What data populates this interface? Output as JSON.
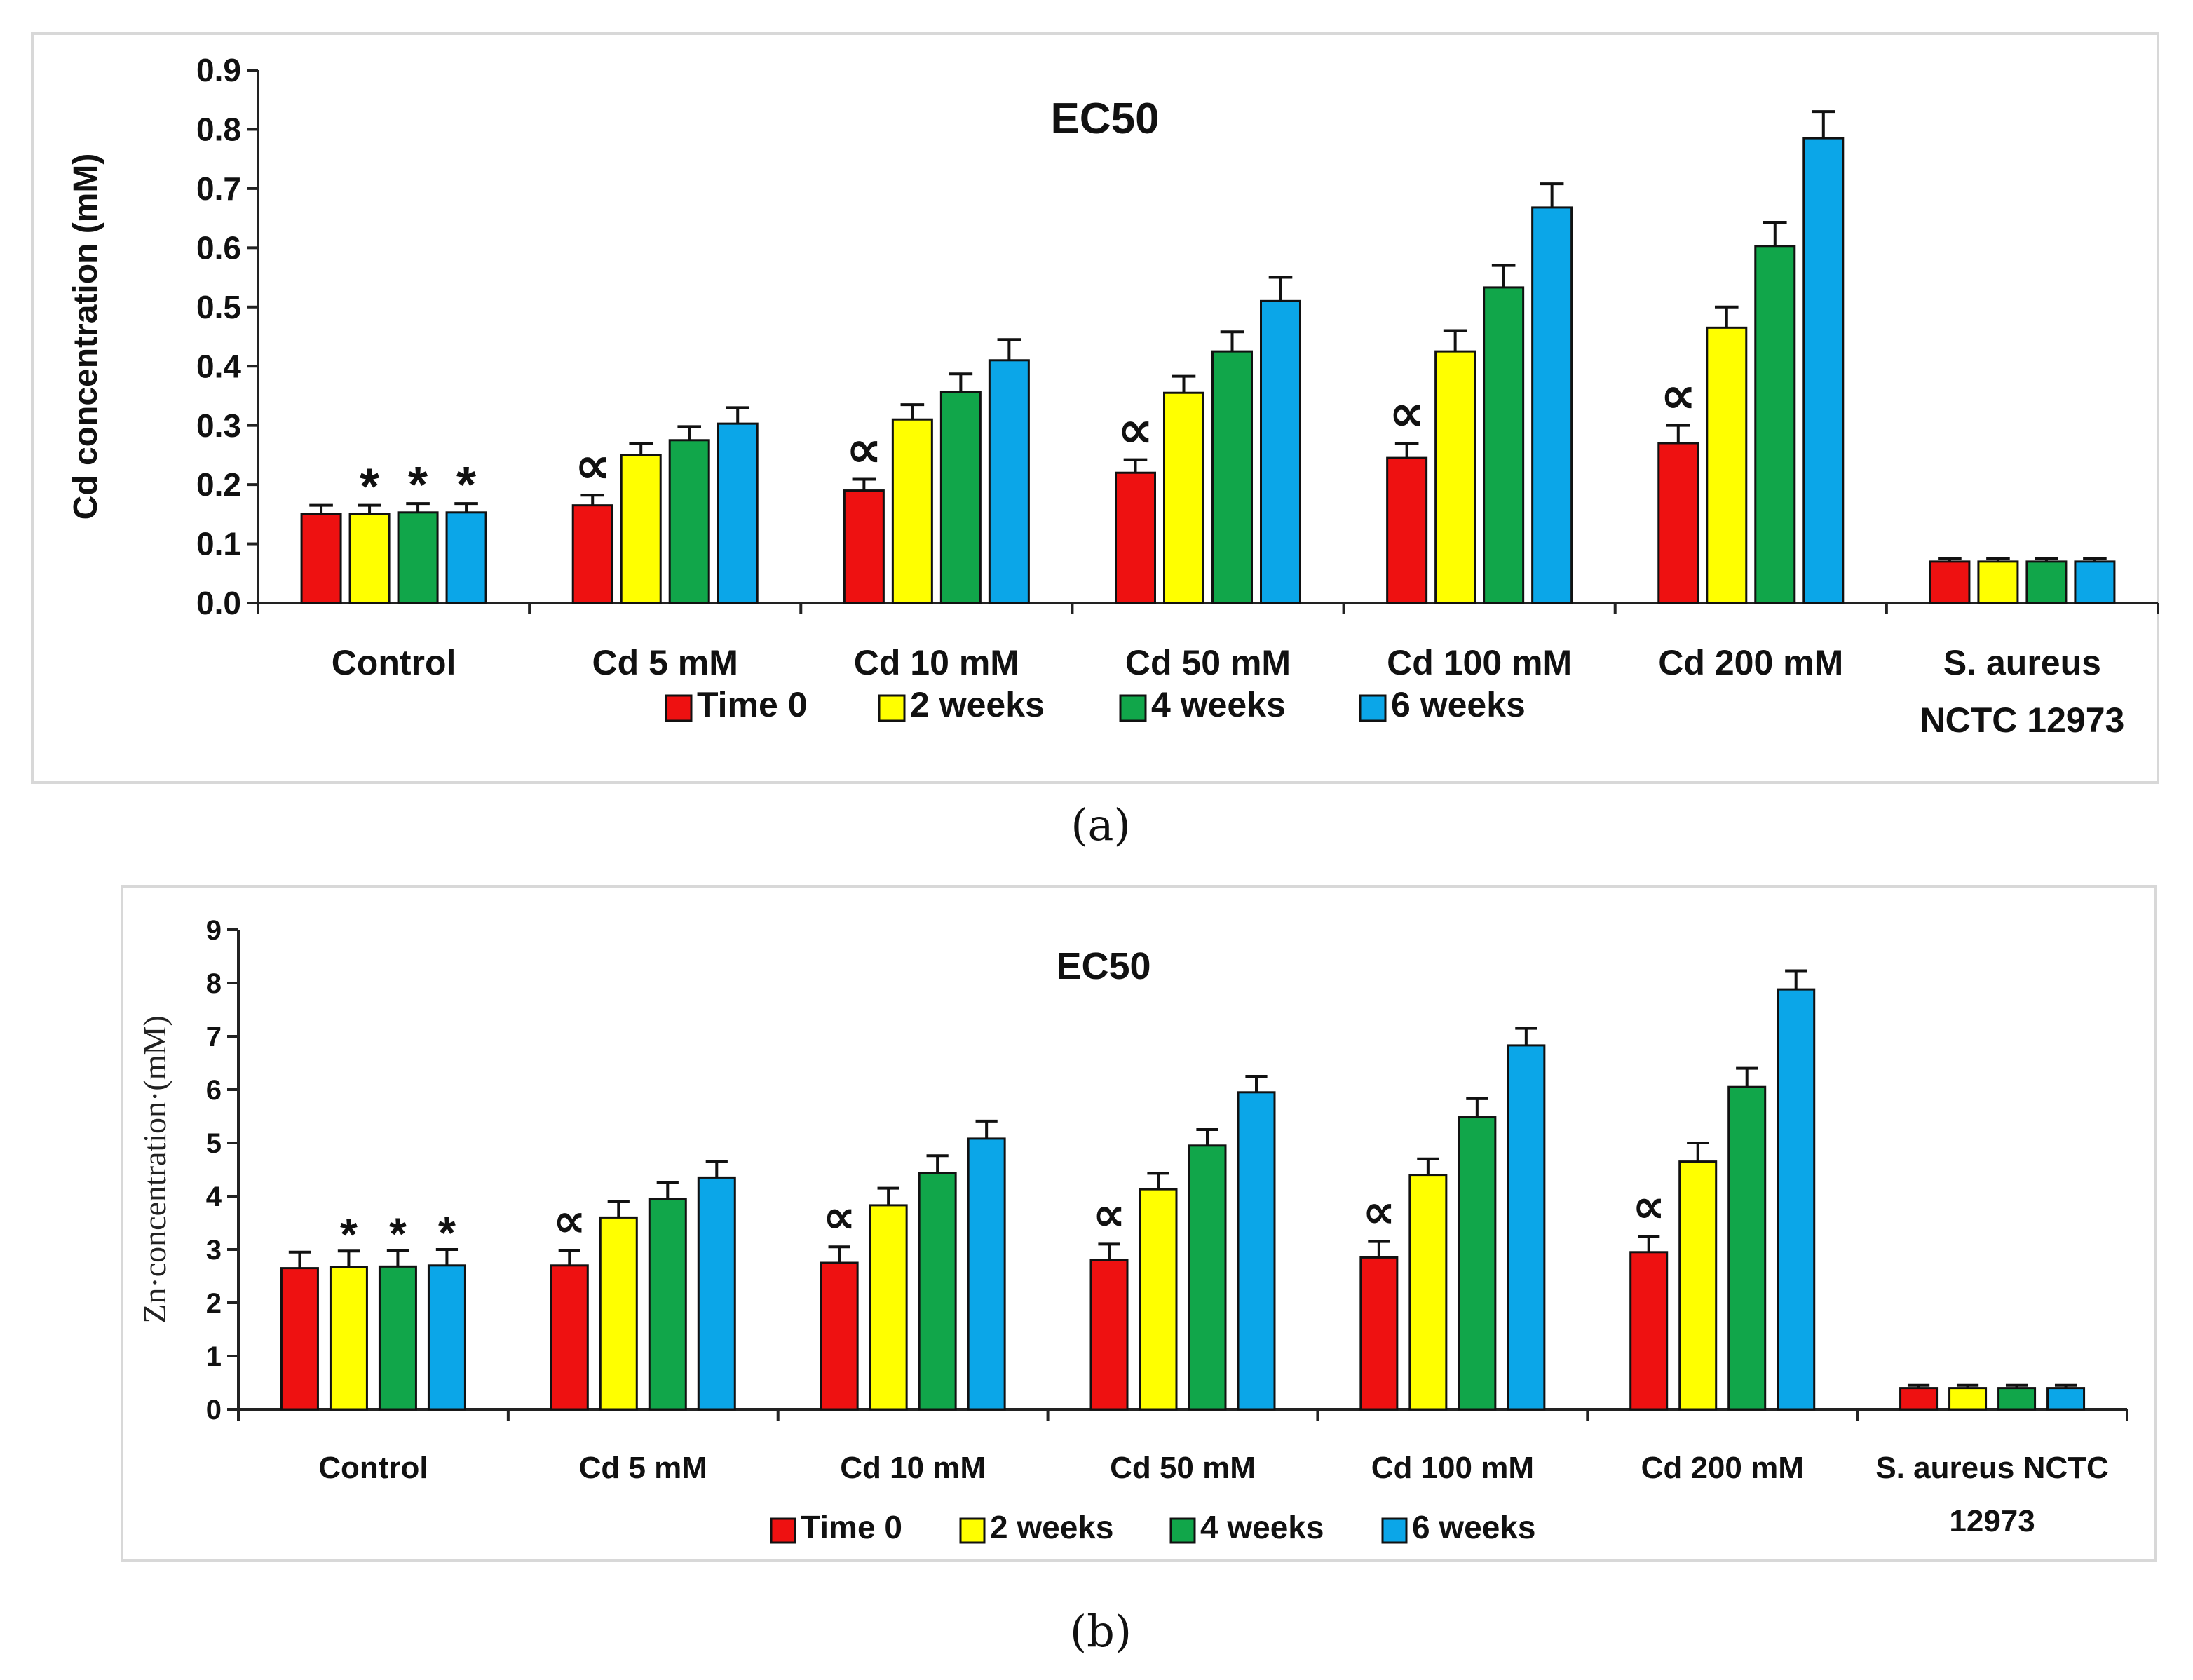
{
  "figure_captions": [
    "(a)",
    "(b)"
  ],
  "chart_data": [
    {
      "type": "bar",
      "title": "EC50",
      "xlabel": "",
      "ylabel": "Cd concentration (mM)",
      "ylim": [
        0,
        0.9
      ],
      "yticks": [
        "0.0",
        "0.1",
        "0.2",
        "0.3",
        "0.4",
        "0.5",
        "0.6",
        "0.7",
        "0.8",
        "0.9"
      ],
      "categories": [
        [
          "Control"
        ],
        [
          "Cd 5 mM"
        ],
        [
          "Cd 10 mM"
        ],
        [
          "Cd 50 mM"
        ],
        [
          "Cd 100 mM"
        ],
        [
          "Cd 200 mM"
        ],
        [
          "S. aureus",
          "NCTC 12973"
        ]
      ],
      "legend_position": "bottom",
      "series": [
        {
          "name": "Time 0",
          "color": "#ee1111",
          "values": [
            0.15,
            0.165,
            0.19,
            0.22,
            0.245,
            0.27,
            0.07
          ],
          "errors": [
            0.015,
            0.017,
            0.019,
            0.022,
            0.025,
            0.03,
            0.005
          ]
        },
        {
          "name": "2 weeks",
          "color": "#ffff00",
          "values": [
            0.15,
            0.25,
            0.31,
            0.355,
            0.425,
            0.465,
            0.07
          ],
          "errors": [
            0.015,
            0.02,
            0.025,
            0.028,
            0.035,
            0.035,
            0.005
          ]
        },
        {
          "name": "4 weeks",
          "color": "#11a64a",
          "values": [
            0.153,
            0.275,
            0.357,
            0.425,
            0.533,
            0.603,
            0.07
          ],
          "errors": [
            0.015,
            0.023,
            0.03,
            0.033,
            0.037,
            0.04,
            0.005
          ]
        },
        {
          "name": "6 weeks",
          "color": "#0ba6e8",
          "values": [
            0.153,
            0.303,
            0.41,
            0.51,
            0.668,
            0.785,
            0.07
          ],
          "errors": [
            0.015,
            0.027,
            0.035,
            0.04,
            0.04,
            0.045,
            0.005
          ]
        }
      ],
      "annotations": [
        {
          "text": "*",
          "category": 0,
          "series": 1
        },
        {
          "text": "*",
          "category": 0,
          "series": 2
        },
        {
          "text": "*",
          "category": 0,
          "series": 3
        },
        {
          "text": "∝",
          "category": 1,
          "series": 0
        },
        {
          "text": "∝",
          "category": 2,
          "series": 0
        },
        {
          "text": "∝",
          "category": 3,
          "series": 0
        },
        {
          "text": "∝",
          "category": 4,
          "series": 0
        },
        {
          "text": "∝",
          "category": 5,
          "series": 0
        }
      ]
    },
    {
      "type": "bar",
      "title": "EC50",
      "xlabel": "",
      "ylabel": "Zn·concentration·(mM)",
      "ylim": [
        0,
        9
      ],
      "yticks": [
        "0",
        "1",
        "2",
        "3",
        "4",
        "5",
        "6",
        "7",
        "8",
        "9"
      ],
      "categories": [
        [
          "Control"
        ],
        [
          "Cd 5 mM"
        ],
        [
          "Cd 10 mM"
        ],
        [
          "Cd 50 mM"
        ],
        [
          "Cd 100 mM"
        ],
        [
          "Cd 200 mM"
        ],
        [
          "S. aureus NCTC",
          "12973"
        ]
      ],
      "legend_position": "bottom",
      "series": [
        {
          "name": "Time 0",
          "color": "#ee1111",
          "values": [
            2.65,
            2.7,
            2.75,
            2.8,
            2.85,
            2.95,
            0.4
          ],
          "errors": [
            0.3,
            0.28,
            0.3,
            0.3,
            0.3,
            0.3,
            0.05
          ]
        },
        {
          "name": "2 weeks",
          "color": "#ffff00",
          "values": [
            2.67,
            3.6,
            3.83,
            4.13,
            4.4,
            4.65,
            0.4
          ],
          "errors": [
            0.3,
            0.3,
            0.32,
            0.3,
            0.3,
            0.35,
            0.05
          ]
        },
        {
          "name": "4 weeks",
          "color": "#11a64a",
          "values": [
            2.68,
            3.95,
            4.43,
            4.95,
            5.48,
            6.05,
            0.4
          ],
          "errors": [
            0.3,
            0.3,
            0.33,
            0.3,
            0.35,
            0.35,
            0.05
          ]
        },
        {
          "name": "6 weeks",
          "color": "#0ba6e8",
          "values": [
            2.7,
            4.35,
            5.08,
            5.95,
            6.83,
            7.88,
            0.4
          ],
          "errors": [
            0.3,
            0.3,
            0.33,
            0.3,
            0.32,
            0.35,
            0.05
          ]
        }
      ],
      "annotations": [
        {
          "text": "*",
          "category": 0,
          "series": 1
        },
        {
          "text": "*",
          "category": 0,
          "series": 2
        },
        {
          "text": "*",
          "category": 0,
          "series": 3
        },
        {
          "text": "∝",
          "category": 1,
          "series": 0
        },
        {
          "text": "∝",
          "category": 2,
          "series": 0
        },
        {
          "text": "∝",
          "category": 3,
          "series": 0
        },
        {
          "text": "∝",
          "category": 4,
          "series": 0
        },
        {
          "text": "∝",
          "category": 5,
          "series": 0
        }
      ]
    }
  ]
}
